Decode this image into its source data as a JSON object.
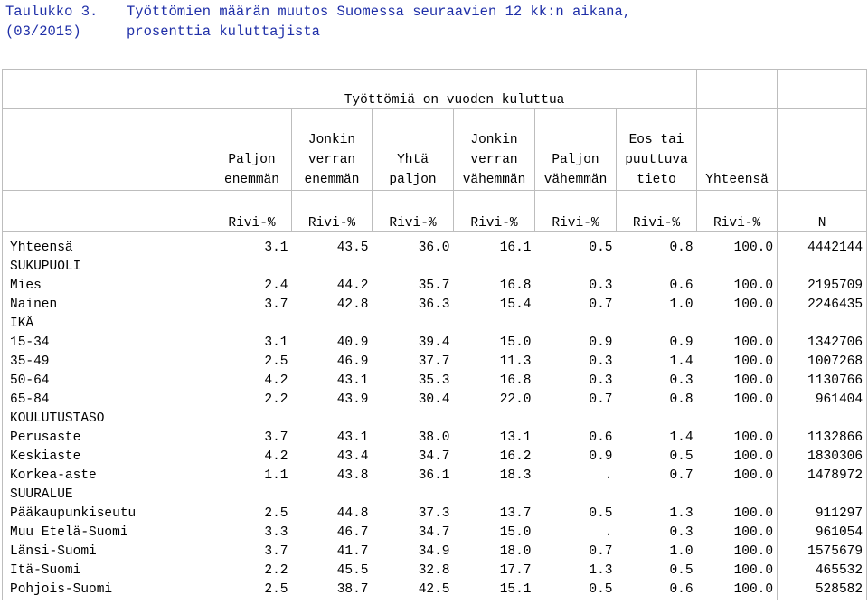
{
  "caption": {
    "label_line1": "Taulukko 3.",
    "label_line2": "(03/2015)",
    "title_line1": "Työttömien määrän muutos Suomessa seuraavien 12 kk:n aikana,",
    "title_line2": "prosenttia kuluttajista"
  },
  "header": {
    "group": "Työttömiä on vuoden kuluttua",
    "columns": [
      [
        "",
        "Paljon",
        "enemmän"
      ],
      [
        "Jonkin",
        "verran",
        "enemmän"
      ],
      [
        "",
        "Yhtä",
        "paljon"
      ],
      [
        "Jonkin",
        "verran",
        "vähemmän"
      ],
      [
        "",
        "Paljon",
        "vähemmän"
      ],
      [
        "Eos tai",
        "puuttuva",
        "tieto"
      ],
      [
        "",
        "",
        "Yhteensä"
      ]
    ],
    "units": [
      "Rivi-%",
      "Rivi-%",
      "Rivi-%",
      "Rivi-%",
      "Rivi-%",
      "Rivi-%",
      "Rivi-%",
      "N"
    ]
  },
  "rows": [
    {
      "type": "data",
      "label": "Yhteensä",
      "values": [
        "3.1",
        "43.5",
        "36.0",
        "16.1",
        "0.5",
        "0.8",
        "100.0",
        "4442144"
      ]
    },
    {
      "type": "section",
      "label": "SUKUPUOLI"
    },
    {
      "type": "data",
      "label": "Mies",
      "values": [
        "2.4",
        "44.2",
        "35.7",
        "16.8",
        "0.3",
        "0.6",
        "100.0",
        "2195709"
      ]
    },
    {
      "type": "data",
      "label": "Nainen",
      "values": [
        "3.7",
        "42.8",
        "36.3",
        "15.4",
        "0.7",
        "1.0",
        "100.0",
        "2246435"
      ]
    },
    {
      "type": "section",
      "label": "IKÄ"
    },
    {
      "type": "data",
      "label": "15-34",
      "values": [
        "3.1",
        "40.9",
        "39.4",
        "15.0",
        "0.9",
        "0.9",
        "100.0",
        "1342706"
      ]
    },
    {
      "type": "data",
      "label": "35-49",
      "values": [
        "2.5",
        "46.9",
        "37.7",
        "11.3",
        "0.3",
        "1.4",
        "100.0",
        "1007268"
      ]
    },
    {
      "type": "data",
      "label": "50-64",
      "values": [
        "4.2",
        "43.1",
        "35.3",
        "16.8",
        "0.3",
        "0.3",
        "100.0",
        "1130766"
      ]
    },
    {
      "type": "data",
      "label": "65-84",
      "values": [
        "2.2",
        "43.9",
        "30.4",
        "22.0",
        "0.7",
        "0.8",
        "100.0",
        "961404"
      ]
    },
    {
      "type": "section",
      "label": "KOULUTUSTASO"
    },
    {
      "type": "data",
      "label": "Perusaste",
      "values": [
        "3.7",
        "43.1",
        "38.0",
        "13.1",
        "0.6",
        "1.4",
        "100.0",
        "1132866"
      ]
    },
    {
      "type": "data",
      "label": "Keskiaste",
      "values": [
        "4.2",
        "43.4",
        "34.7",
        "16.2",
        "0.9",
        "0.5",
        "100.0",
        "1830306"
      ]
    },
    {
      "type": "data",
      "label": "Korkea-aste",
      "values": [
        "1.1",
        "43.8",
        "36.1",
        "18.3",
        ".",
        "0.7",
        "100.0",
        "1478972"
      ]
    },
    {
      "type": "section",
      "label": "SUURALUE"
    },
    {
      "type": "data",
      "label": "Pääkaupunkiseutu",
      "values": [
        "2.5",
        "44.8",
        "37.3",
        "13.7",
        "0.5",
        "1.3",
        "100.0",
        "911297"
      ]
    },
    {
      "type": "data",
      "label": "Muu Etelä-Suomi",
      "values": [
        "3.3",
        "46.7",
        "34.7",
        "15.0",
        ".",
        "0.3",
        "100.0",
        "961054"
      ]
    },
    {
      "type": "data",
      "label": "Länsi-Suomi",
      "values": [
        "3.7",
        "41.7",
        "34.9",
        "18.0",
        "0.7",
        "1.0",
        "100.0",
        "1575679"
      ]
    },
    {
      "type": "data",
      "label": "Itä-Suomi",
      "values": [
        "2.2",
        "45.5",
        "32.8",
        "17.7",
        "1.3",
        "0.5",
        "100.0",
        "465532"
      ]
    },
    {
      "type": "data",
      "label": "Pohjois-Suomi",
      "values": [
        "2.5",
        "38.7",
        "42.5",
        "15.1",
        "0.5",
        "0.6",
        "100.0",
        "528582"
      ]
    }
  ]
}
